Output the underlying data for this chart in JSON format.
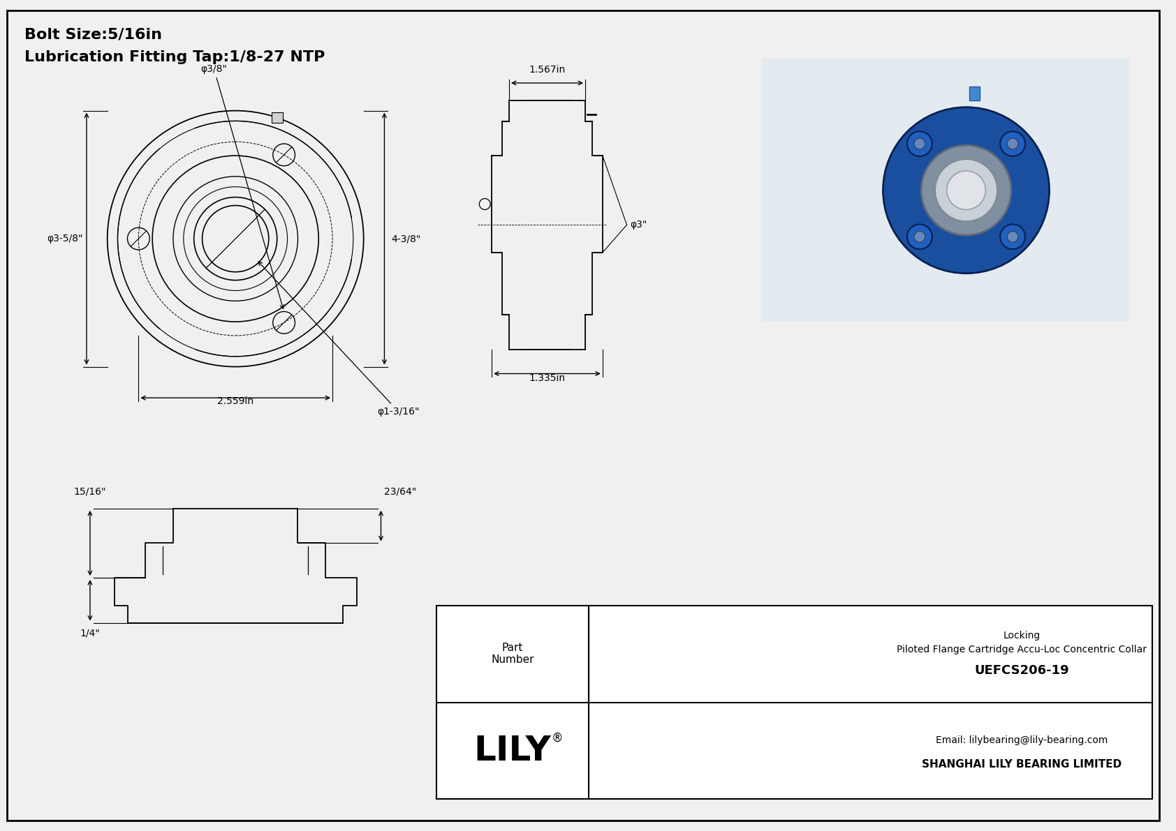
{
  "bg_color": "#f0f0f0",
  "border_color": "#000000",
  "line_color": "#000000",
  "title_line1": "Bolt Size:5/16in",
  "title_line2": "Lubrication Fitting Tap:1/8-27 NTP",
  "dim_front_labels": {
    "bolt_hole_dia": "φ3/8\"",
    "flange_dia": "φ3-5/8\"",
    "height": "4-3/8\"",
    "bc_dia": "2.559in",
    "bore_dia": "φ1-3/16\""
  },
  "dim_side_labels": {
    "width_top": "1.567in",
    "bore_dia": "φ3\"",
    "width_bottom": "1.335in"
  },
  "dim_bottom_labels": {
    "height1": "15/16\"",
    "height2": "23/64\"",
    "height3": "1/4\""
  },
  "title_block": {
    "company": "SHANGHAI LILY BEARING LIMITED",
    "email": "Email: lilybearing@lily-bearing.com",
    "part_label": "Part\nNumber",
    "part_number": "UEFCS206-19",
    "description": "Piloted Flange Cartridge Accu-Loc Concentric Collar\nLocking",
    "logo": "LILY"
  }
}
